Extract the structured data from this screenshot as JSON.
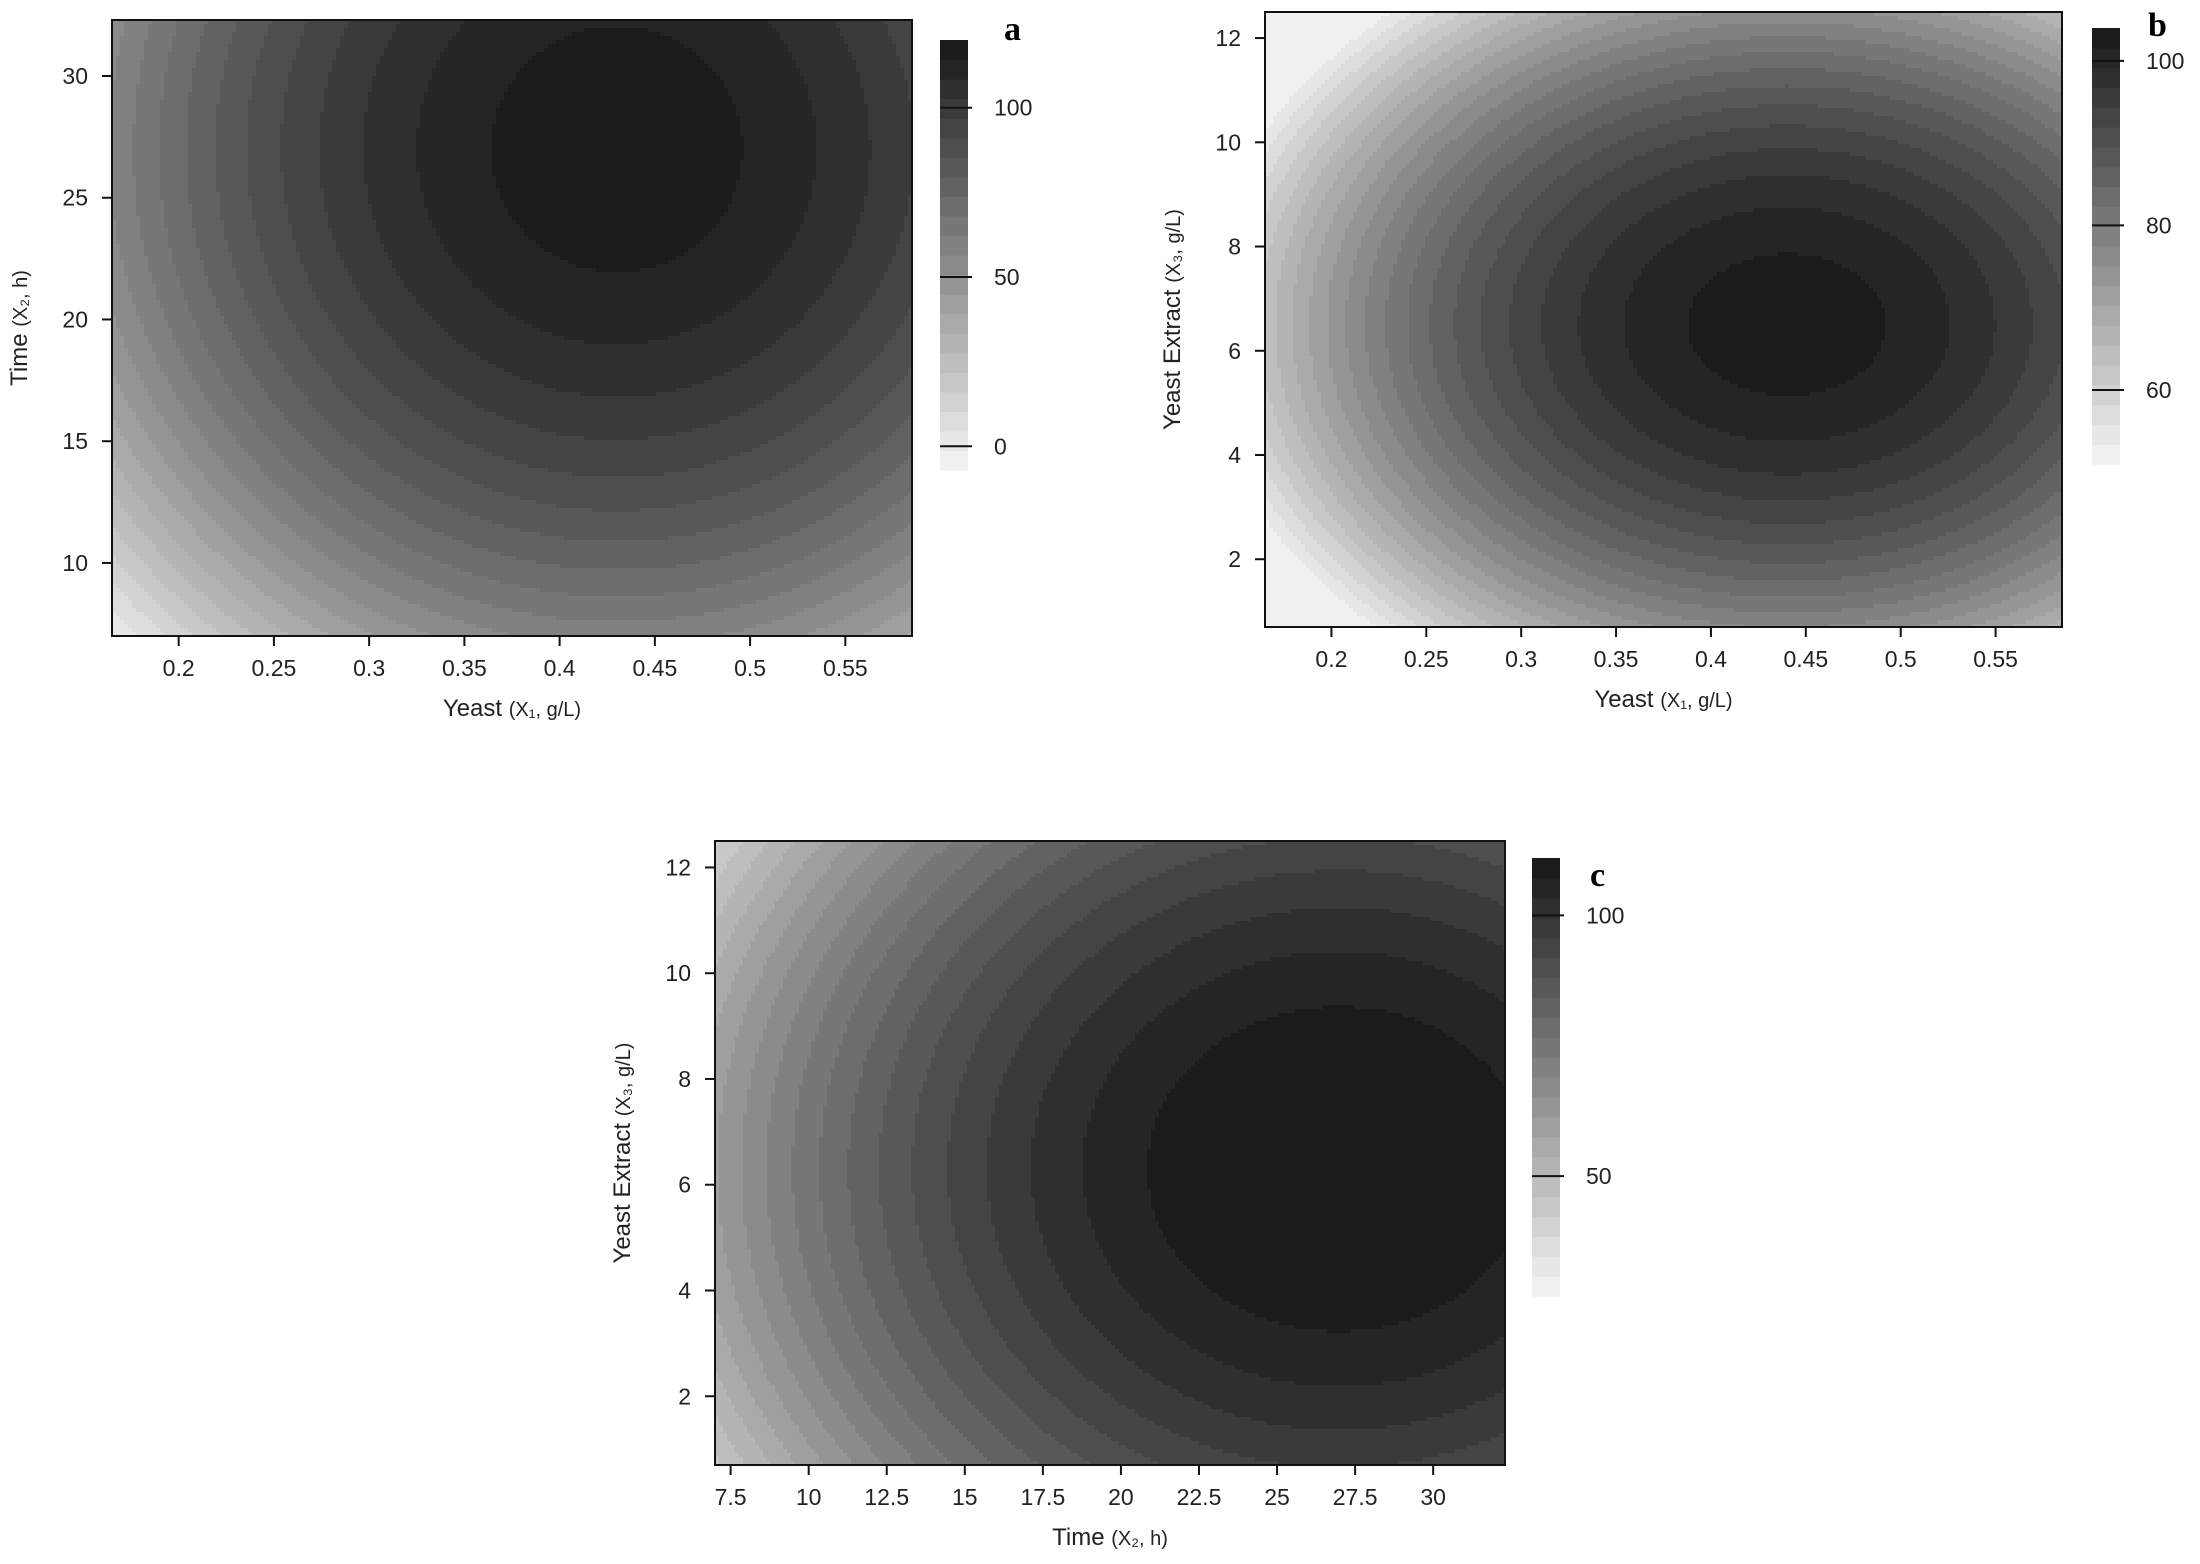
{
  "chart_data": [
    {
      "type": "heatmap",
      "panel_label": "a",
      "xlabel": "Yeast",
      "xlabel_units": "(X₁, g/L)",
      "ylabel": "Time",
      "ylabel_units": "(X₂, h)",
      "xlim": [
        0.165,
        0.585
      ],
      "ylim": [
        7,
        32.3
      ],
      "x_ticks": [
        0.2,
        0.25,
        0.3,
        0.35,
        0.4,
        0.45,
        0.5,
        0.55
      ],
      "x_tick_labels": [
        "0.2",
        "0.25",
        "0.3",
        "0.35",
        "0.4",
        "0.45",
        "0.5",
        "0.55"
      ],
      "y_ticks": [
        10,
        15,
        20,
        25,
        30
      ],
      "y_tick_labels": [
        "10",
        "15",
        "20",
        "25",
        "30"
      ],
      "colorbar": {
        "range": [
          -7,
          120
        ],
        "ticks": [
          0,
          50,
          100
        ],
        "tick_labels": [
          "0",
          "50",
          "100"
        ]
      },
      "color_scale": "grayscale, light = low, dark = high",
      "surface": {
        "peak_x": 0.43,
        "peak_y": 27,
        "peak_value": 118,
        "x_scale": 0.34,
        "y_scale": 26
      }
    },
    {
      "type": "heatmap",
      "panel_label": "b",
      "xlabel": "Yeast",
      "xlabel_units": "(X₁, g/L)",
      "ylabel": "Yeast Extract",
      "ylabel_units": "(X₃, g/L)",
      "xlim": [
        0.165,
        0.585
      ],
      "ylim": [
        0.7,
        12.5
      ],
      "x_ticks": [
        0.2,
        0.25,
        0.3,
        0.35,
        0.4,
        0.45,
        0.5,
        0.55
      ],
      "x_tick_labels": [
        "0.2",
        "0.25",
        "0.3",
        "0.35",
        "0.4",
        "0.45",
        "0.5",
        "0.55"
      ],
      "y_ticks": [
        2,
        4,
        6,
        8,
        10,
        12
      ],
      "y_tick_labels": [
        "2",
        "4",
        "6",
        "8",
        "10",
        "12"
      ],
      "colorbar": {
        "range": [
          51,
          104
        ],
        "ticks": [
          60,
          80,
          100
        ],
        "tick_labels": [
          "60",
          "80",
          "100"
        ]
      },
      "color_scale": "grayscale, light = low, dark = high",
      "surface": {
        "peak_x": 0.44,
        "peak_y": 6.5,
        "peak_value": 103,
        "x_scale": 0.44,
        "y_scale": 11.5
      }
    },
    {
      "type": "heatmap",
      "panel_label": "c",
      "xlabel": "Time",
      "xlabel_units": "(X₂, h)",
      "ylabel": "Yeast Extract",
      "ylabel_units": "(X₃, g/L)",
      "xlim": [
        7,
        32.3
      ],
      "ylim": [
        0.7,
        12.5
      ],
      "x_ticks": [
        7.5,
        10,
        12.5,
        15,
        17.5,
        20,
        22.5,
        25,
        27.5,
        30
      ],
      "x_tick_labels": [
        "7.5",
        "10",
        "12.5",
        "15",
        "17.5",
        "20",
        "22.5",
        "25",
        "27.5",
        "30"
      ],
      "y_ticks": [
        2,
        4,
        6,
        8,
        10,
        12
      ],
      "y_tick_labels": [
        "2",
        "4",
        "6",
        "8",
        "10",
        "12"
      ],
      "colorbar": {
        "range": [
          27,
          111
        ],
        "ticks": [
          50,
          100
        ],
        "tick_labels": [
          "50",
          "100"
        ]
      },
      "color_scale": "grayscale, light = low, dark = high",
      "surface": {
        "peak_x": 27,
        "peak_y": 6.3,
        "peak_value": 112,
        "x_scale": 28,
        "y_scale": 14
      }
    }
  ]
}
